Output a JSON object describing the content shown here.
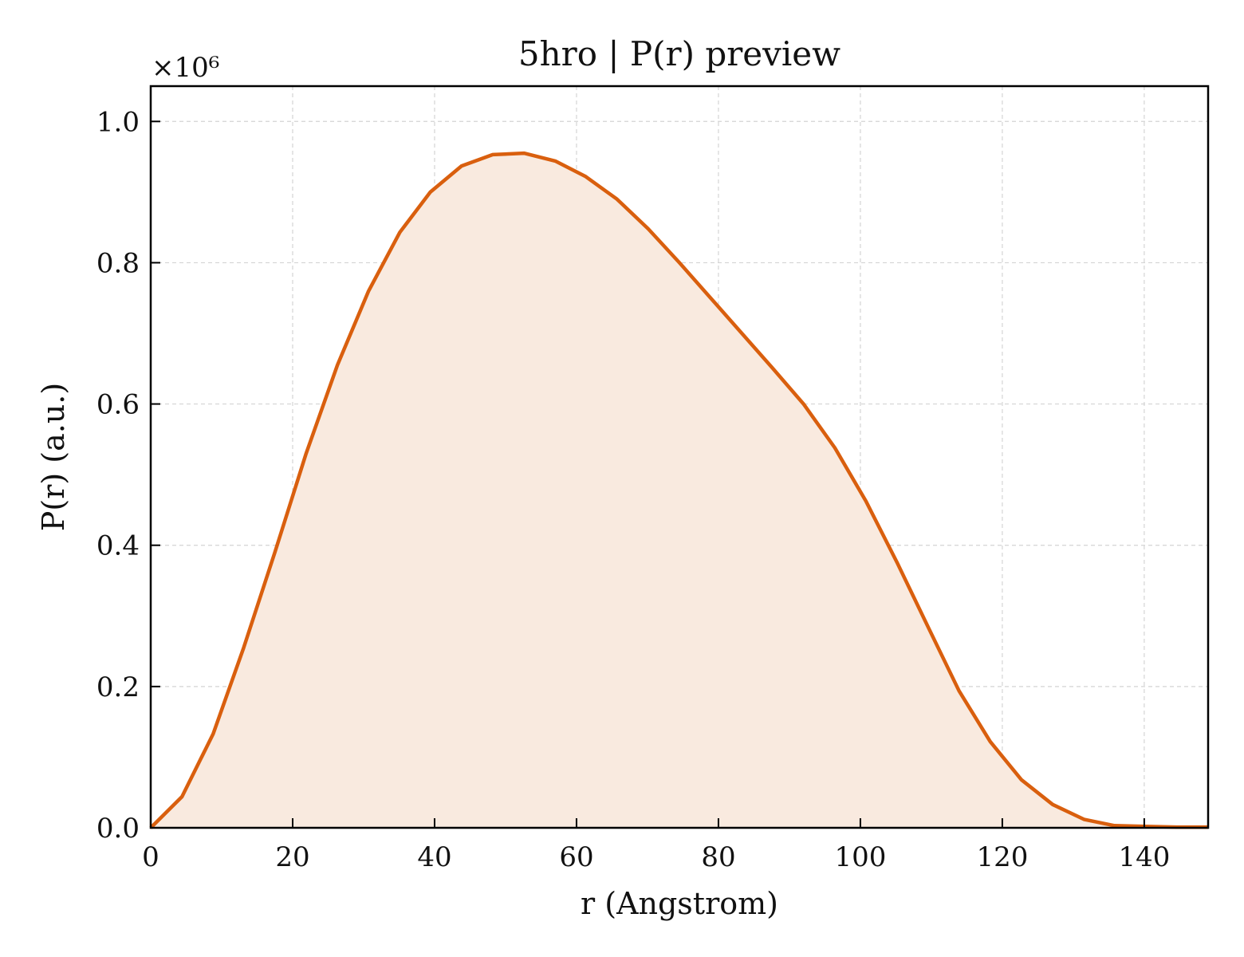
{
  "chart_data": {
    "type": "area",
    "title": "5hro | P(r) preview",
    "xlabel": "r (Angstrom)",
    "ylabel": "P(r) (a.u.)",
    "y_multiplier_label": "×10⁶",
    "xlim": [
      0,
      149
    ],
    "ylim": [
      0,
      1.05
    ],
    "x_ticks": [
      0,
      20,
      40,
      60,
      80,
      100,
      120,
      140
    ],
    "x_tick_labels": [
      "0",
      "20",
      "40",
      "60",
      "80",
      "100",
      "120",
      "140"
    ],
    "y_ticks": [
      0,
      0.2,
      0.4,
      0.6,
      0.8,
      1.0
    ],
    "y_tick_labels": [
      "0.0",
      "0.2",
      "0.4",
      "0.6",
      "0.8",
      "1.0"
    ],
    "grid": true,
    "line_color": "#d95f0e",
    "fill_color": "#f9eadf",
    "x": [
      0,
      4.4,
      8.8,
      13.1,
      17.5,
      21.9,
      26.3,
      30.7,
      35.1,
      39.4,
      43.8,
      48.2,
      52.6,
      57.0,
      61.3,
      65.7,
      70.1,
      74.5,
      78.9,
      83.3,
      87.6,
      92.0,
      96.4,
      100.8,
      105.2,
      109.6,
      113.9,
      118.3,
      122.7,
      127.1,
      131.5,
      135.8,
      140.2,
      144.6,
      149.0
    ],
    "y": [
      0.0,
      0.044,
      0.133,
      0.255,
      0.39,
      0.53,
      0.655,
      0.76,
      0.843,
      0.9,
      0.937,
      0.953,
      0.955,
      0.944,
      0.922,
      0.89,
      0.848,
      0.8,
      0.75,
      0.7,
      0.651,
      0.6,
      0.538,
      0.462,
      0.375,
      0.283,
      0.194,
      0.122,
      0.068,
      0.033,
      0.012,
      0.003,
      0.002,
      0.001,
      0.001
    ]
  }
}
